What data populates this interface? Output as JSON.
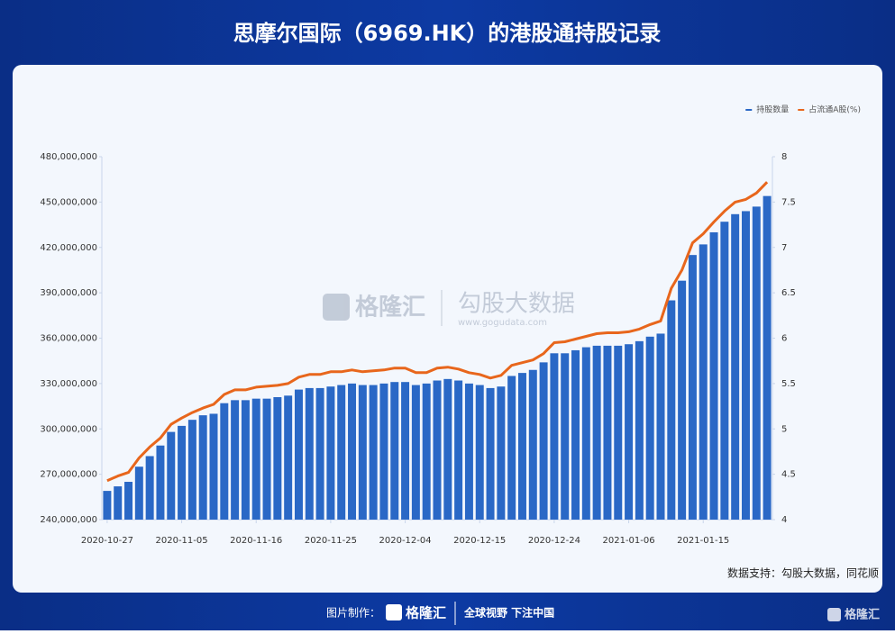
{
  "chart_data": {
    "type": "bar",
    "title": "思摩尔国际（6969.HK）的港股通持股记录",
    "categories": [
      "2020-10-27",
      null,
      null,
      null,
      null,
      null,
      null,
      "2020-11-05",
      null,
      null,
      null,
      null,
      null,
      null,
      "2020-11-16",
      null,
      null,
      null,
      null,
      null,
      null,
      "2020-11-25",
      null,
      null,
      null,
      null,
      null,
      null,
      "2020-12-04",
      null,
      null,
      null,
      null,
      null,
      null,
      "2020-12-15",
      null,
      null,
      null,
      null,
      null,
      null,
      "2020-12-24",
      null,
      null,
      null,
      null,
      null,
      null,
      "2021-01-06",
      null,
      null,
      null,
      null,
      null,
      null,
      "2021-01-15",
      null,
      null,
      null,
      null,
      null,
      null
    ],
    "series": [
      {
        "name": "持股数量",
        "type": "bar",
        "color": "#2a68c6",
        "values": [
          259000000,
          262000000,
          265000000,
          275000000,
          282000000,
          289000000,
          298000000,
          302000000,
          306000000,
          309000000,
          310000000,
          317000000,
          319000000,
          319000000,
          320000000,
          320000000,
          321000000,
          322000000,
          326000000,
          327000000,
          327000000,
          328000000,
          329000000,
          330000000,
          329000000,
          329000000,
          330000000,
          331000000,
          331000000,
          329000000,
          330000000,
          332000000,
          333000000,
          332000000,
          330000000,
          329000000,
          327000000,
          328000000,
          335000000,
          337000000,
          339000000,
          344000000,
          350000000,
          350000000,
          352000000,
          354000000,
          355000000,
          355000000,
          355000000,
          356000000,
          358000000,
          361000000,
          363000000,
          385000000,
          398000000,
          415000000,
          422000000,
          430000000,
          437000000,
          442000000,
          444000000,
          447000000,
          454000000
        ]
      },
      {
        "name": "占流通A股(%)",
        "type": "line",
        "axis": "y2",
        "color": "#e8661c",
        "values": [
          4.43,
          4.48,
          4.52,
          4.68,
          4.8,
          4.9,
          5.05,
          5.12,
          5.18,
          5.23,
          5.27,
          5.38,
          5.43,
          5.43,
          5.46,
          5.47,
          5.48,
          5.5,
          5.57,
          5.6,
          5.6,
          5.63,
          5.63,
          5.65,
          5.63,
          5.64,
          5.65,
          5.67,
          5.67,
          5.62,
          5.62,
          5.67,
          5.68,
          5.66,
          5.62,
          5.6,
          5.56,
          5.59,
          5.7,
          5.73,
          5.76,
          5.83,
          5.95,
          5.96,
          5.99,
          6.02,
          6.05,
          6.06,
          6.06,
          6.07,
          6.1,
          6.15,
          6.19,
          6.55,
          6.75,
          7.05,
          7.15,
          7.28,
          7.4,
          7.5,
          7.53,
          7.6,
          7.72
        ]
      }
    ],
    "ylim": [
      240000000,
      480000000
    ],
    "yticks": [
      {
        "value": 240000000,
        "label": "240,000,000"
      },
      {
        "value": 270000000,
        "label": "270,000,000"
      },
      {
        "value": 300000000,
        "label": "300,000,000"
      },
      {
        "value": 330000000,
        "label": "330,000,000"
      },
      {
        "value": 360000000,
        "label": "360,000,000"
      },
      {
        "value": 390000000,
        "label": "390,000,000"
      },
      {
        "value": 420000000,
        "label": "420,000,000"
      },
      {
        "value": 450000000,
        "label": "450,000,000"
      },
      {
        "value": 480000000,
        "label": "480,000,000"
      }
    ],
    "y2lim": [
      4,
      8
    ],
    "y2ticks": [
      4,
      4.5,
      5,
      5.5,
      6,
      6.5,
      7,
      7.5,
      8
    ],
    "legend": "top-right",
    "grid": false,
    "source": "数据支持：勾股大数据，同花顺"
  },
  "watermark": {
    "brand": "格隆汇",
    "name": "勾股大数据",
    "url": "www.gogudata.com"
  },
  "footer": {
    "made_by": "图片制作：",
    "brand": "格隆汇",
    "slogan": "全球视野 下注中国",
    "corner_brand": "格隆汇"
  }
}
